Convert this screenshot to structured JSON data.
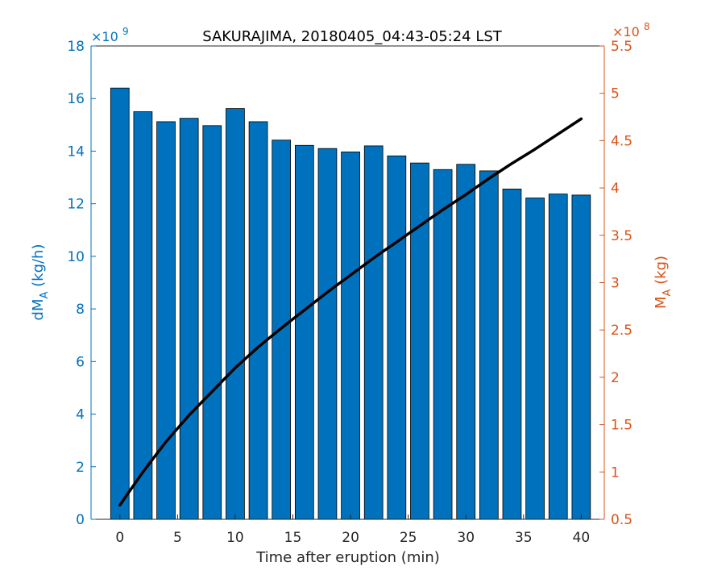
{
  "chart_data": {
    "type": "bar+line",
    "title": "SAKURAJIMA, 20180405_04:43-05:24 LST",
    "xlabel": "Time after eruption (min)",
    "xlim": [
      -2.5,
      42
    ],
    "xticks": [
      0,
      5,
      10,
      15,
      20,
      25,
      30,
      35,
      40
    ],
    "grid": false,
    "left_axis": {
      "label_main": "dM",
      "label_sub": "A",
      "label_unit": "(kg/h)",
      "exponent_base": "×10",
      "exponent_power": "9",
      "ylim": [
        0,
        18
      ],
      "ticks": [
        0,
        2,
        4,
        6,
        8,
        10,
        12,
        14,
        16,
        18
      ],
      "color": "#0072BD"
    },
    "right_axis": {
      "label_main": "M",
      "label_sub": "A",
      "label_unit": "(kg)",
      "exponent_base": "×10",
      "exponent_power": "8",
      "ylim": [
        0.5,
        5.5
      ],
      "ticks": [
        "0.5",
        "1",
        "1.5",
        "2",
        "2.5",
        "3",
        "3.5",
        "4",
        "4.5",
        "5",
        "5.5"
      ],
      "color": "#D95319"
    },
    "series": [
      {
        "type": "bar",
        "axis": "left",
        "unit_scale": "1e9",
        "color": "#0072BD",
        "x": [
          0,
          2,
          4,
          6,
          8,
          10,
          12,
          14,
          16,
          18,
          20,
          22,
          24,
          26,
          28,
          30,
          32,
          34,
          36,
          38,
          40
        ],
        "values": [
          16.4,
          15.5,
          15.12,
          15.25,
          14.97,
          15.62,
          15.12,
          14.42,
          14.22,
          14.1,
          13.97,
          14.2,
          13.82,
          13.55,
          13.3,
          13.5,
          13.25,
          12.56,
          12.22,
          12.37,
          12.33
        ]
      },
      {
        "type": "line",
        "axis": "right",
        "unit_scale": "1e8",
        "color": "#000000",
        "x": [
          0,
          2,
          4,
          6,
          8,
          10,
          12,
          14,
          16,
          18,
          20,
          22,
          24,
          26,
          28,
          30,
          32,
          34,
          36,
          38,
          40
        ],
        "values": [
          0.65,
          1.0,
          1.32,
          1.6,
          1.85,
          2.1,
          2.32,
          2.52,
          2.71,
          2.9,
          3.08,
          3.26,
          3.43,
          3.6,
          3.77,
          3.93,
          4.1,
          4.26,
          4.41,
          4.57,
          4.73
        ]
      }
    ]
  }
}
